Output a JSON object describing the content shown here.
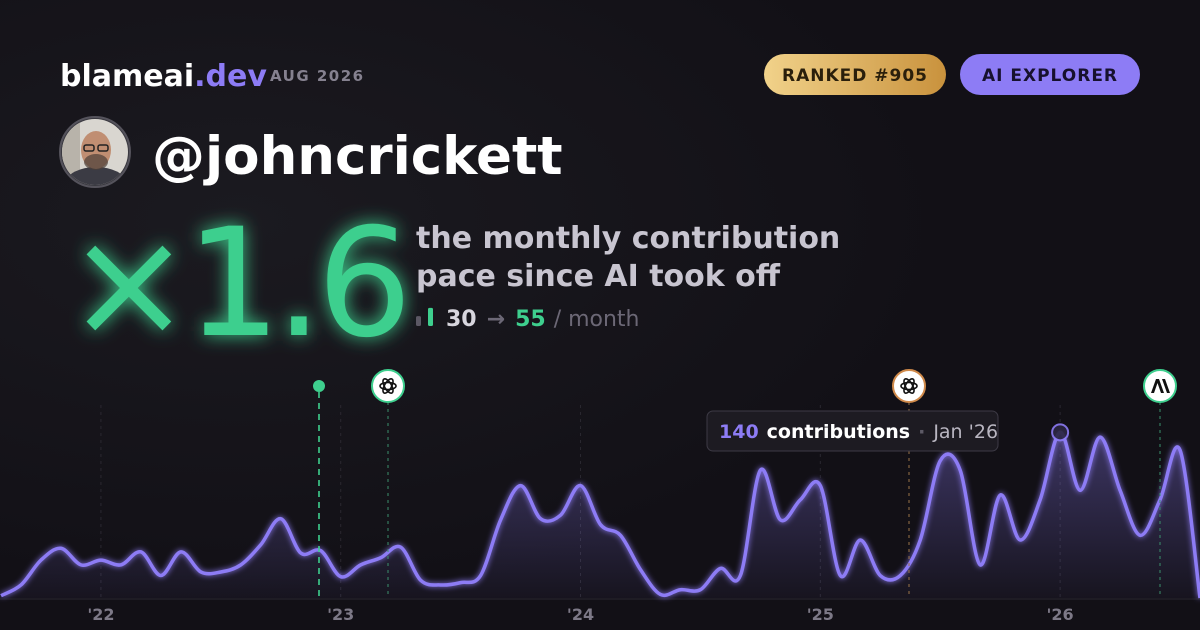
{
  "header": {
    "brand": "blameai",
    "brand_suffix": ".dev",
    "date": "AUG 2026",
    "badges": [
      "RANKED #905",
      "AI EXPLORER"
    ]
  },
  "profile": {
    "handle": "@johncrickett"
  },
  "headline": {
    "multiplier": "×1.6",
    "caption": [
      "the monthly contribution",
      "pace since AI took off"
    ]
  },
  "pace": {
    "from": 30,
    "arrow": "→",
    "to": 55,
    "unit": "/ month"
  },
  "chart_data": {
    "type": "area",
    "color": "#8d7cf5",
    "categories": [
      null,
      null,
      null,
      null,
      null,
      "'22",
      null,
      null,
      null,
      null,
      null,
      null,
      null,
      null,
      null,
      null,
      null,
      "'23",
      null,
      null,
      null,
      null,
      null,
      null,
      null,
      null,
      null,
      null,
      null,
      "'24",
      null,
      null,
      null,
      null,
      null,
      null,
      null,
      null,
      null,
      null,
      null,
      "'25",
      null,
      null,
      null,
      null,
      null,
      null,
      null,
      null,
      null,
      null,
      null,
      "'26",
      null,
      null,
      null,
      null,
      null,
      null,
      null
    ],
    "values": [
      2,
      11,
      32,
      42,
      28,
      32,
      28,
      39,
      19,
      39,
      22,
      22,
      28,
      45,
      67,
      38,
      40,
      18,
      28,
      34,
      43,
      15,
      11,
      13,
      19,
      66,
      95,
      67,
      70,
      95,
      62,
      53,
      24,
      3,
      7,
      7,
      25,
      19,
      108,
      66,
      83,
      95,
      19,
      49,
      19,
      19,
      49,
      116,
      108,
      28,
      87,
      49,
      83,
      140,
      91,
      136,
      91,
      53,
      83,
      125,
      0
    ],
    "ylim": [
      0,
      180
    ],
    "tooltip": {
      "label": "contributions",
      "date": "Jan '26"
    }
  }
}
